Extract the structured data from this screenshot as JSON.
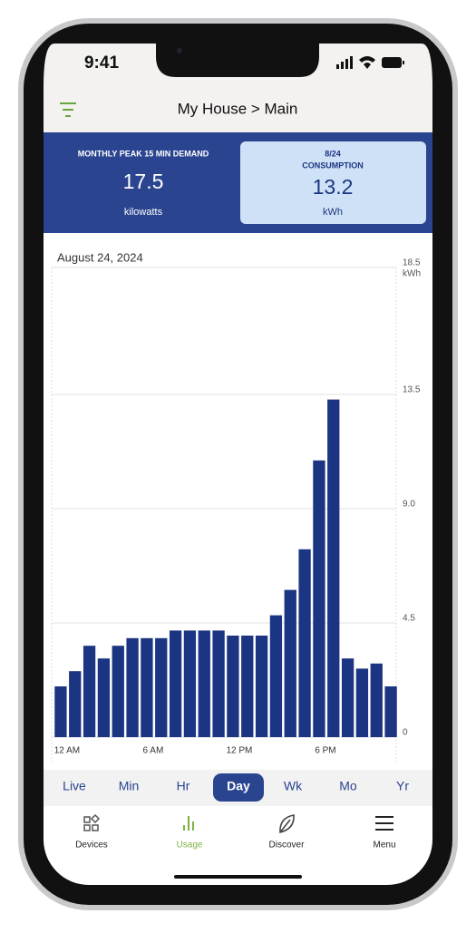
{
  "status_bar": {
    "time": "9:41"
  },
  "header": {
    "title": "My House > Main"
  },
  "summary": {
    "left": {
      "label": "MONTHLY PEAK 15 MIN DEMAND",
      "value": "17.5",
      "unit": "kilowatts"
    },
    "right": {
      "label_top": "8/24",
      "label": "CONSUMPTION",
      "value": "13.2",
      "unit": "kWh"
    }
  },
  "date": "August 24, 2024",
  "chart_data": {
    "type": "bar",
    "y_unit": "kWh",
    "color": "#1c3582",
    "categories": [
      "12 AM",
      null,
      null,
      null,
      null,
      null,
      "6 AM",
      null,
      null,
      null,
      null,
      null,
      "12 PM",
      null,
      null,
      null,
      null,
      null,
      "6 PM",
      null,
      null,
      null,
      null,
      null
    ],
    "values": [
      2.0,
      2.6,
      3.6,
      3.1,
      3.6,
      3.9,
      3.9,
      3.9,
      4.2,
      4.2,
      4.2,
      4.2,
      4.0,
      4.0,
      4.0,
      4.8,
      5.8,
      7.4,
      10.9,
      13.3,
      3.1,
      2.7,
      2.9,
      2.0
    ],
    "ylim": [
      0,
      18.5
    ],
    "yticks": [
      0,
      4.5,
      {
        "value": 9,
        "label": "9.0"
      },
      13.5,
      18.5
    ],
    "grid": true
  },
  "tabs": [
    {
      "label": "Live"
    },
    {
      "label": "Min"
    },
    {
      "label": "Hr"
    },
    {
      "label": "Day",
      "selected": true
    },
    {
      "label": "Wk"
    },
    {
      "label": "Mo"
    },
    {
      "label": "Yr"
    }
  ],
  "nav": [
    {
      "label": "Devices"
    },
    {
      "label": "Usage",
      "active": true
    },
    {
      "label": "Discover"
    },
    {
      "label": "Menu"
    }
  ]
}
